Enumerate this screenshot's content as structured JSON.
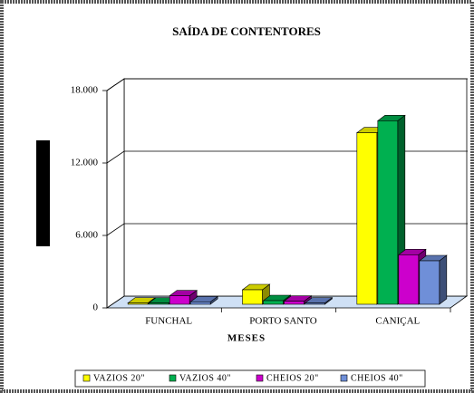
{
  "chart_data": {
    "type": "bar3d",
    "title": "SAÍDA DE CONTENTORES",
    "xlabel": "MESES",
    "categories": [
      "FUNCHAL",
      "PORTO SANTO",
      "CANIÇAL"
    ],
    "series": [
      {
        "name": "VAZIOS 20\"",
        "color": "#ffff00",
        "values": [
          100,
          1200,
          14200
        ]
      },
      {
        "name": "VAZIOS 40\"",
        "color": "#00b050",
        "values": [
          100,
          300,
          15200
        ]
      },
      {
        "name": "CHEIOS 20\"",
        "color": "#cc00cc",
        "values": [
          700,
          250,
          4100
        ]
      },
      {
        "name": "CHEIOS 40\"",
        "color": "#6f8fd8",
        "values": [
          200,
          100,
          3600
        ]
      }
    ],
    "ylim": [
      0,
      18000
    ],
    "yticks": [
      0,
      {
        "value": 6000,
        "label": "6.000"
      },
      {
        "value": 12000,
        "label": "12.000"
      },
      {
        "value": 18000,
        "label": "18.000"
      }
    ],
    "grid": true
  }
}
